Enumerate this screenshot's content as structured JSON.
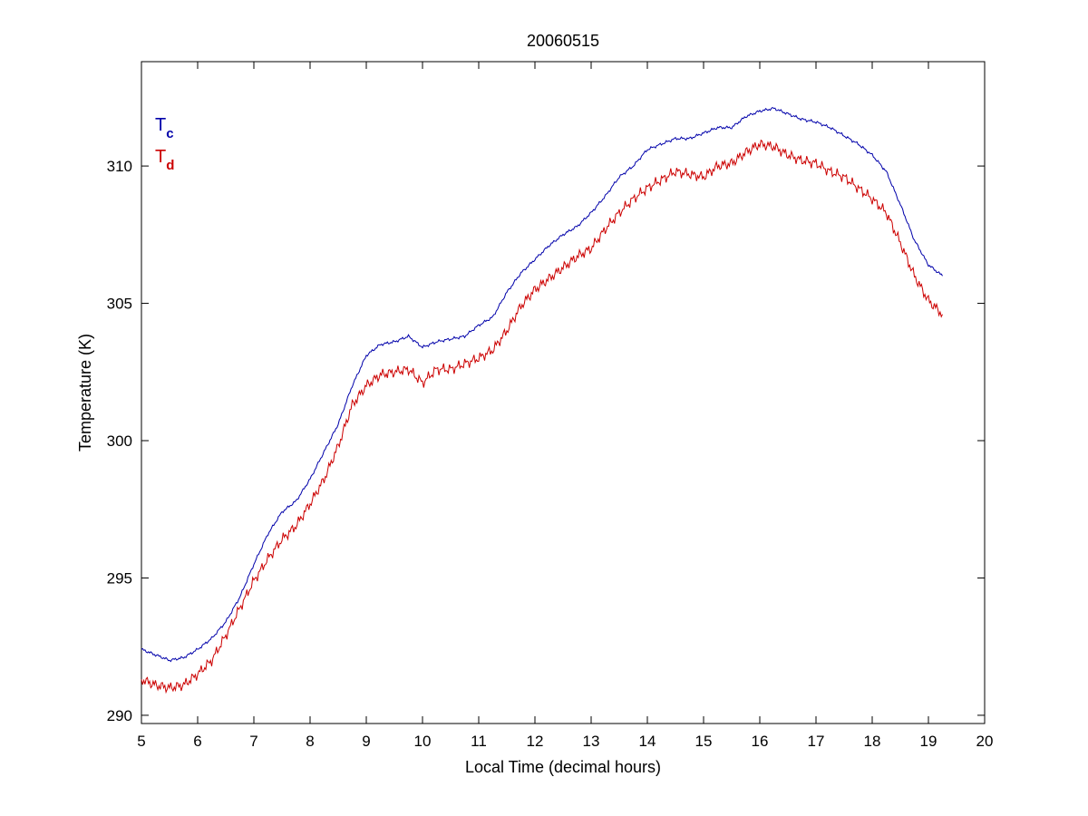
{
  "chart_data": {
    "type": "line",
    "title": "20060515",
    "xlabel": "Local Time (decimal hours)",
    "ylabel": "Temperature (K)",
    "xlim": [
      5,
      20
    ],
    "ylim": [
      289.7,
      313.8
    ],
    "xticks": [
      5,
      6,
      7,
      8,
      9,
      10,
      11,
      12,
      13,
      14,
      15,
      16,
      17,
      18,
      19,
      20
    ],
    "yticks": [
      290,
      295,
      300,
      305,
      310
    ],
    "grid": false,
    "legend": {
      "placement": "top-left",
      "entries": [
        {
          "main": "T",
          "sub": "c"
        },
        {
          "main": "T",
          "sub": "d"
        }
      ]
    },
    "series": [
      {
        "legend_main": "T",
        "legend_sub": "c",
        "color": "#0000aa",
        "x": [
          5.0,
          5.25,
          5.5,
          5.75,
          6.0,
          6.25,
          6.5,
          6.75,
          7.0,
          7.25,
          7.5,
          7.75,
          8.0,
          8.25,
          8.5,
          8.75,
          9.0,
          9.25,
          9.5,
          9.75,
          10.0,
          10.25,
          10.5,
          10.75,
          11.0,
          11.25,
          11.5,
          11.75,
          12.0,
          12.25,
          12.5,
          12.75,
          13.0,
          13.25,
          13.5,
          13.75,
          14.0,
          14.25,
          14.5,
          14.75,
          15.0,
          15.25,
          15.5,
          15.75,
          16.0,
          16.25,
          16.5,
          16.75,
          17.0,
          17.25,
          17.5,
          17.75,
          18.0,
          18.25,
          18.5,
          18.75,
          19.0,
          19.25
        ],
        "y": [
          292.4,
          292.2,
          292.0,
          292.1,
          292.4,
          292.8,
          293.4,
          294.3,
          295.5,
          296.6,
          297.4,
          297.8,
          298.6,
          299.6,
          300.6,
          302.0,
          303.1,
          303.5,
          303.6,
          303.8,
          303.4,
          303.6,
          303.7,
          303.8,
          304.2,
          304.5,
          305.4,
          306.1,
          306.6,
          307.1,
          307.5,
          307.8,
          308.3,
          308.9,
          309.6,
          310.0,
          310.6,
          310.8,
          311.0,
          311.0,
          311.2,
          311.4,
          311.4,
          311.8,
          312.0,
          312.1,
          311.9,
          311.7,
          311.6,
          311.4,
          311.1,
          310.8,
          310.4,
          309.8,
          308.6,
          307.3,
          306.4,
          306.0
        ]
      },
      {
        "legend_main": "T",
        "legend_sub": "d",
        "color": "#cc0000",
        "x": [
          5.0,
          5.25,
          5.5,
          5.75,
          6.0,
          6.25,
          6.5,
          6.75,
          7.0,
          7.25,
          7.5,
          7.75,
          8.0,
          8.25,
          8.5,
          8.75,
          9.0,
          9.25,
          9.5,
          9.75,
          10.0,
          10.25,
          10.5,
          10.75,
          11.0,
          11.25,
          11.5,
          11.75,
          12.0,
          12.25,
          12.5,
          12.75,
          13.0,
          13.25,
          13.5,
          13.75,
          14.0,
          14.25,
          14.5,
          14.75,
          15.0,
          15.25,
          15.5,
          15.75,
          16.0,
          16.25,
          16.5,
          16.75,
          17.0,
          17.25,
          17.5,
          17.75,
          18.0,
          18.25,
          18.5,
          18.75,
          19.0,
          19.25
        ],
        "y": [
          291.3,
          291.1,
          291.0,
          291.1,
          291.5,
          292.0,
          292.9,
          293.9,
          294.9,
          295.7,
          296.4,
          296.9,
          297.7,
          298.6,
          299.8,
          301.3,
          302.0,
          302.4,
          302.5,
          302.6,
          302.1,
          302.6,
          302.6,
          302.8,
          303.0,
          303.3,
          304.0,
          304.9,
          305.5,
          305.9,
          306.3,
          306.7,
          307.0,
          307.7,
          308.3,
          308.8,
          309.2,
          309.5,
          309.8,
          309.7,
          309.6,
          310.0,
          310.1,
          310.5,
          310.8,
          310.7,
          310.4,
          310.2,
          310.1,
          309.8,
          309.6,
          309.2,
          308.8,
          308.3,
          307.2,
          306.0,
          305.1,
          304.6
        ]
      }
    ]
  }
}
